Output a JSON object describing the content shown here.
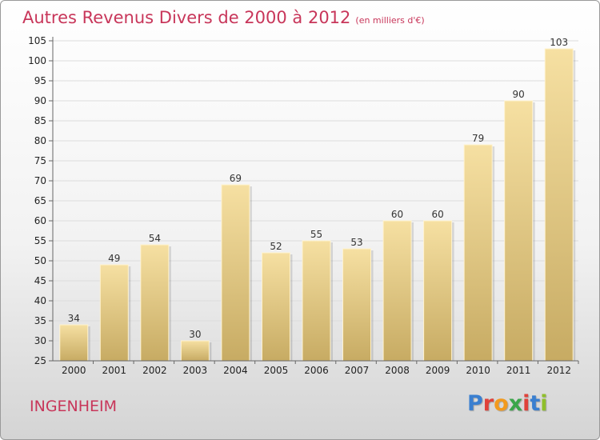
{
  "header": {
    "title": "Autres Revenus Divers de 2000 à 2012",
    "subtitle": "(en milliers d'€)"
  },
  "footer": {
    "commune": "INGENHEIM",
    "logo": "Proxiti",
    "logo_colors": [
      "#3a7fd0",
      "#e0423a",
      "#f29a1e",
      "#3aa64a",
      "#e0423a",
      "#3a7fd0",
      "#8fbf2a"
    ]
  },
  "chart_data": {
    "type": "bar",
    "title": "Autres Revenus Divers de 2000 à 2012",
    "subtitle": "(en milliers d'€)",
    "categories": [
      "2000",
      "2001",
      "2002",
      "2003",
      "2004",
      "2005",
      "2006",
      "2007",
      "2008",
      "2009",
      "2010",
      "2011",
      "2012"
    ],
    "values": [
      34,
      49,
      54,
      30,
      69,
      52,
      55,
      53,
      60,
      60,
      79,
      90,
      103
    ],
    "value_labels": [
      "34",
      "49",
      "54",
      "30",
      "69",
      "52",
      "55",
      "53",
      "60",
      "60",
      "79",
      "90",
      "103"
    ],
    "ylim": [
      25,
      105
    ],
    "yticks": [
      "25",
      "30",
      "35",
      "40",
      "45",
      "50",
      "55",
      "60",
      "65",
      "70",
      "75",
      "80",
      "85",
      "90",
      "95",
      "100",
      "105"
    ],
    "grid": true,
    "bar_color_top": "#f6e0a2",
    "bar_color_bottom": "#c7ab63"
  }
}
